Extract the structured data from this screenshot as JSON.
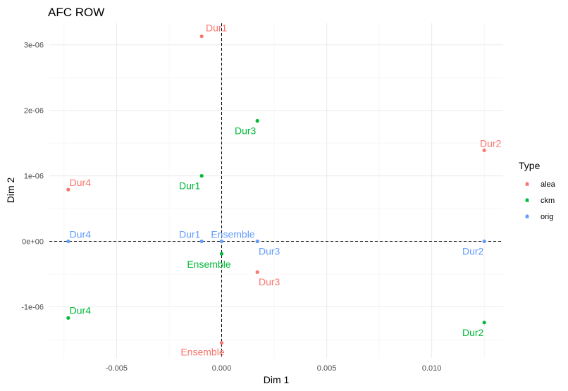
{
  "chart_data": {
    "type": "scatter",
    "title": "AFC ROW",
    "xlabel": "Dim 1",
    "ylabel": "Dim 2",
    "xlim": [
      -0.0082,
      0.0134
    ],
    "ylim": [
      -1.78e-06,
      3.33e-06
    ],
    "x_ticks": [
      -0.005,
      0.0,
      0.005,
      0.01
    ],
    "x_tick_labels": [
      "-0.005",
      "0.000",
      "0.005",
      "0.010"
    ],
    "y_ticks": [
      -1e-06,
      0,
      1e-06,
      2e-06,
      3e-06
    ],
    "y_tick_labels": [
      "-1e-06",
      "0e+00",
      "1e-06",
      "2e-06",
      "3e-06"
    ],
    "grid": true,
    "reference_lines": {
      "x": 0,
      "y": 0
    },
    "legend": {
      "title": "Type",
      "position": "right",
      "entries": [
        {
          "name": "alea",
          "color": "#F8766D"
        },
        {
          "name": "ckm",
          "color": "#00BA38"
        },
        {
          "name": "orig",
          "color": "#619CFF"
        }
      ],
      "key_glyph": "a"
    },
    "series": [
      {
        "name": "alea",
        "color": "#F8766D",
        "points": [
          {
            "label": "Dur1",
            "x": -0.00095,
            "y": 3.13e-06
          },
          {
            "label": "Dur2",
            "x": 0.0125,
            "y": 1.39e-06
          },
          {
            "label": "Dur3",
            "x": 0.0017,
            "y": -4.7e-07
          },
          {
            "label": "Dur4",
            "x": -0.0073,
            "y": 7.9e-07
          },
          {
            "label": "Ensemble",
            "x": 0.0,
            "y": -1.55e-06
          }
        ]
      },
      {
        "name": "ckm",
        "color": "#00BA38",
        "points": [
          {
            "label": "Dur1",
            "x": -0.00095,
            "y": 1e-06
          },
          {
            "label": "Dur2",
            "x": 0.0125,
            "y": -1.24e-06
          },
          {
            "label": "Dur3",
            "x": 0.0017,
            "y": 1.84e-06
          },
          {
            "label": "Dur4",
            "x": -0.0073,
            "y": -1.17e-06
          },
          {
            "label": "Ensemble",
            "x": 0.0,
            "y": -1.9e-07
          }
        ]
      },
      {
        "name": "orig",
        "color": "#619CFF",
        "points": [
          {
            "label": "Dur1",
            "x": -0.00095,
            "y": 0.0
          },
          {
            "label": "Dur2",
            "x": 0.0125,
            "y": 0.0
          },
          {
            "label": "Dur3",
            "x": 0.0017,
            "y": 0.0
          },
          {
            "label": "Dur4",
            "x": -0.0073,
            "y": 0.0
          },
          {
            "label": "Ensemble",
            "x": 0.0,
            "y": 0.0
          }
        ]
      }
    ]
  }
}
